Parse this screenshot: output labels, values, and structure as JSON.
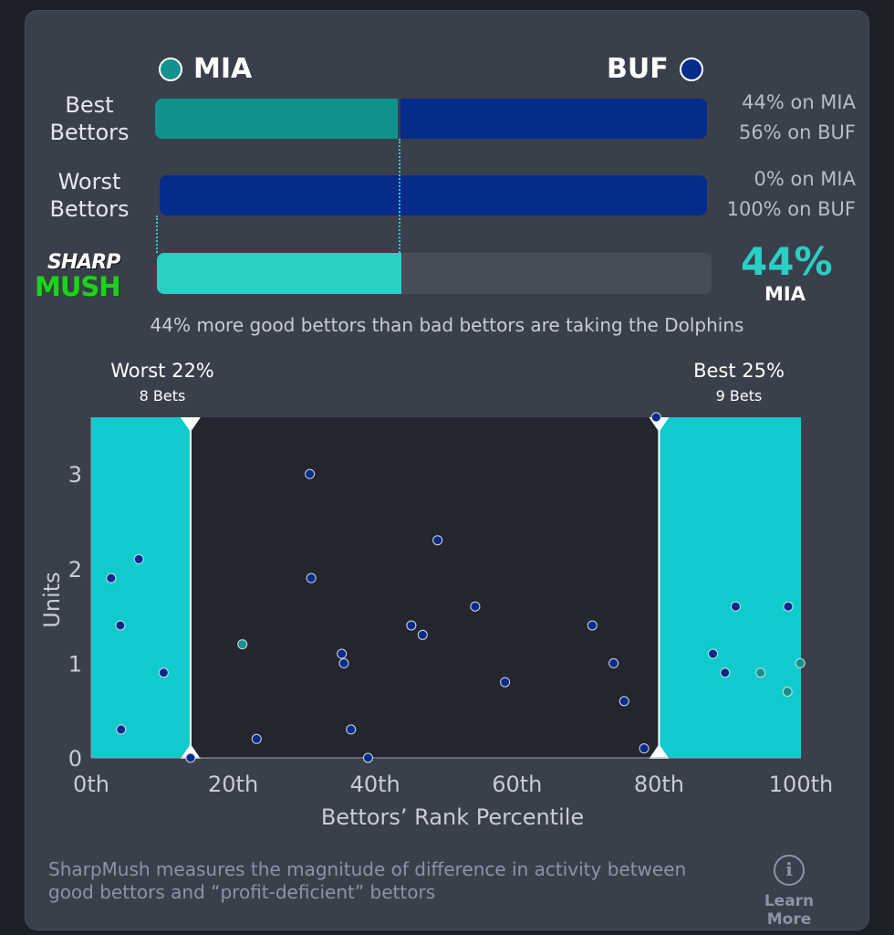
{
  "teams": {
    "left": {
      "abbr": "MIA",
      "color": "#12928f"
    },
    "right": {
      "abbr": "BUF",
      "color": "#052b8b"
    }
  },
  "best_bettors": {
    "label_line1": "Best",
    "label_line2": "Bettors",
    "left_pct": 44,
    "right_pct": 56,
    "left_text": "44% on MIA",
    "right_text": "56% on BUF"
  },
  "worst_bettors": {
    "label_line1": "Worst",
    "label_line2": "Bettors",
    "left_pct": 0,
    "right_pct": 100,
    "left_text": "0% on MIA",
    "right_text": "100% on BUF"
  },
  "sharpmush": {
    "logo_line1": "SHARP",
    "logo_line2": "MUSH",
    "value_pct": 44,
    "value_text": "44%",
    "team": "MIA",
    "bar_color": "#2ad0c4"
  },
  "summary_text": "44% more good bettors than bad bettors are taking the Dolphins",
  "chart_data": {
    "type": "scatter",
    "xlabel": "Bettors’ Rank Percentile",
    "ylabel": "Units",
    "xlim": [
      0,
      100
    ],
    "ylim": [
      0,
      3.6
    ],
    "x_ticks": [
      0,
      20,
      40,
      60,
      80,
      100
    ],
    "x_tick_labels": [
      "0th",
      "20th",
      "40th",
      "60th",
      "80th",
      "100th"
    ],
    "y_ticks": [
      0,
      1,
      2,
      3
    ],
    "y_tick_labels": [
      "0",
      "1",
      "2",
      "3"
    ],
    "buckets": [
      {
        "name": "worst",
        "title": "Worst 22%",
        "subtitle": "8 Bets",
        "from": 0,
        "to": 14,
        "color": "#0fcbcd"
      },
      {
        "name": "best",
        "title": "Best 25%",
        "subtitle": "9 Bets",
        "from": 80,
        "to": 100,
        "color": "#0fcbcd"
      }
    ],
    "series": [
      {
        "name": "MIA",
        "color": "#12928f",
        "points": [
          [
            21.3,
            1.2
          ],
          [
            94.3,
            0.9
          ],
          [
            98.1,
            0.7
          ],
          [
            99.9,
            1.0
          ]
        ]
      },
      {
        "name": "BUF",
        "color": "#052b8b",
        "points": [
          [
            2.8,
            1.9
          ],
          [
            4.1,
            1.4
          ],
          [
            4.2,
            0.3
          ],
          [
            6.7,
            2.1
          ],
          [
            10.2,
            0.9
          ],
          [
            14.0,
            0.0
          ],
          [
            23.3,
            0.2
          ],
          [
            30.8,
            3.0
          ],
          [
            31.0,
            1.9
          ],
          [
            35.3,
            1.1
          ],
          [
            35.6,
            1.0
          ],
          [
            36.6,
            0.3
          ],
          [
            39.0,
            0.0
          ],
          [
            45.1,
            1.4
          ],
          [
            46.7,
            1.3
          ],
          [
            48.8,
            2.3
          ],
          [
            54.1,
            1.6
          ],
          [
            58.3,
            0.8
          ],
          [
            70.6,
            1.4
          ],
          [
            73.6,
            1.0
          ],
          [
            75.1,
            0.6
          ],
          [
            77.9,
            0.1
          ],
          [
            79.6,
            3.6
          ],
          [
            87.6,
            1.1
          ],
          [
            89.3,
            0.9
          ],
          [
            90.8,
            1.6
          ],
          [
            98.2,
            1.6
          ]
        ]
      }
    ]
  },
  "footer_text": "SharpMush measures the magnitude of difference in activity between good bettors and “profit-deficient” bettors",
  "learn_more": {
    "icon_glyph": "i",
    "label": "Learn More"
  }
}
